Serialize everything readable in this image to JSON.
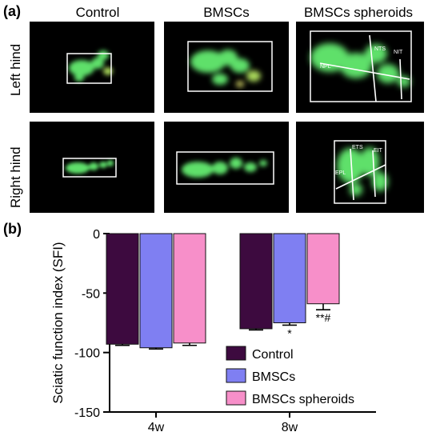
{
  "panel_a": {
    "label": "(a)",
    "columns": [
      "Control",
      "BMSCs",
      "BMSCs spheroids"
    ],
    "rows": [
      "Left hind",
      "Right hind"
    ],
    "annotations": {
      "left_spheroid": [
        "NPL",
        "NTS",
        "NIT"
      ],
      "right_spheroid": [
        "ETS",
        "EIT",
        "EPL"
      ]
    },
    "colors": {
      "footprint": "#5ee06a",
      "background": "#000000",
      "box": "#ffffff"
    }
  },
  "panel_b": {
    "label": "(b)"
  },
  "chart_data": {
    "type": "bar",
    "ylabel": "Sciatic function index (SFI)",
    "ylim": [
      -150,
      0
    ],
    "yticks": [
      0,
      -50,
      -100,
      -150
    ],
    "yticklabels": [
      "0",
      "-50",
      "-100",
      "-150"
    ],
    "categories": [
      "4w",
      "8w"
    ],
    "series": [
      {
        "name": "Control",
        "color": "#3d0a3f",
        "values": [
          -93,
          -80
        ],
        "errors": [
          1,
          1
        ]
      },
      {
        "name": "BMSCs",
        "color": "#7f7ff2",
        "values": [
          -96,
          -75
        ],
        "errors": [
          1,
          2
        ]
      },
      {
        "name": "BMSCs spheroids",
        "color": "#f78fc9",
        "values": [
          -92,
          -59
        ],
        "errors": [
          2,
          5
        ]
      }
    ],
    "annotations": [
      {
        "category": "8w",
        "series": "BMSCs",
        "text": "*"
      },
      {
        "category": "8w",
        "series": "BMSCs spheroids",
        "text": "**#"
      }
    ],
    "legend_position": "bottom-right",
    "grid": false
  }
}
